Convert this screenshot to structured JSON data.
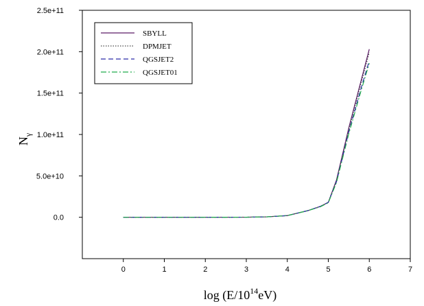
{
  "chart_data": {
    "type": "line",
    "xlabel": {
      "prefix": "log (E/10",
      "sup": "14",
      "suffix": "eV)"
    },
    "ylabel": {
      "main": "N",
      "sub": "γ"
    },
    "xlim": [
      -1,
      7
    ],
    "ylim": [
      -50000000000,
      250000000000
    ],
    "xticks": [
      0,
      1,
      2,
      3,
      4,
      5,
      6,
      7
    ],
    "xtick_labels": [
      "0",
      "1",
      "2",
      "3",
      "4",
      "5",
      "6",
      "7"
    ],
    "yticks": [
      0,
      50000000000,
      100000000000,
      150000000000,
      200000000000,
      250000000000
    ],
    "ytick_labels": [
      "0.0",
      "5.0e+10",
      "1.0e+11",
      "1.5e+11",
      "2.0e+11",
      "2.5e+11"
    ],
    "grid": false,
    "legend_position": "top-left",
    "series": [
      {
        "name": "SBYLL",
        "color": "#5a1a66",
        "dash": "",
        "x": [
          0,
          1,
          2,
          3,
          3.5,
          4,
          4.5,
          4.8,
          5,
          5.2,
          5.5,
          5.8,
          6
        ],
        "y": [
          0,
          0,
          0,
          100000000,
          500000000,
          2000000000,
          8000000000,
          13000000000,
          18000000000,
          45000000000,
          108000000000,
          165000000000,
          203000000000
        ]
      },
      {
        "name": "DPMJET",
        "color": "#444444",
        "dash": "1.5,2",
        "x": [
          0,
          1,
          2,
          3,
          3.5,
          4,
          4.5,
          4.8,
          5,
          5.2,
          5.5,
          5.8,
          6
        ],
        "y": [
          0,
          0,
          0,
          100000000,
          500000000,
          2000000000,
          8000000000,
          13000000000,
          18000000000,
          44000000000,
          106000000000,
          162000000000,
          199000000000
        ]
      },
      {
        "name": "QGSJET2",
        "color": "#2a2aa6",
        "dash": "7,4",
        "x": [
          0,
          1,
          2,
          3,
          3.5,
          4,
          4.5,
          4.8,
          5,
          5.2,
          5.5,
          5.8,
          6
        ],
        "y": [
          0,
          0,
          0,
          100000000,
          500000000,
          2000000000,
          8000000000,
          13000000000,
          18000000000,
          43000000000,
          103000000000,
          156000000000,
          189000000000
        ]
      },
      {
        "name": "QGSJET01",
        "color": "#1faa4a",
        "dash": "8,3,2,3",
        "x": [
          0,
          1,
          2,
          3,
          3.5,
          4,
          4.5,
          4.8,
          5,
          5.2,
          5.5,
          5.8,
          6
        ],
        "y": [
          0,
          0,
          0,
          100000000,
          500000000,
          2000000000,
          8000000000,
          12500000000,
          17500000000,
          42000000000,
          101000000000,
          153000000000,
          186000000000
        ]
      }
    ]
  }
}
